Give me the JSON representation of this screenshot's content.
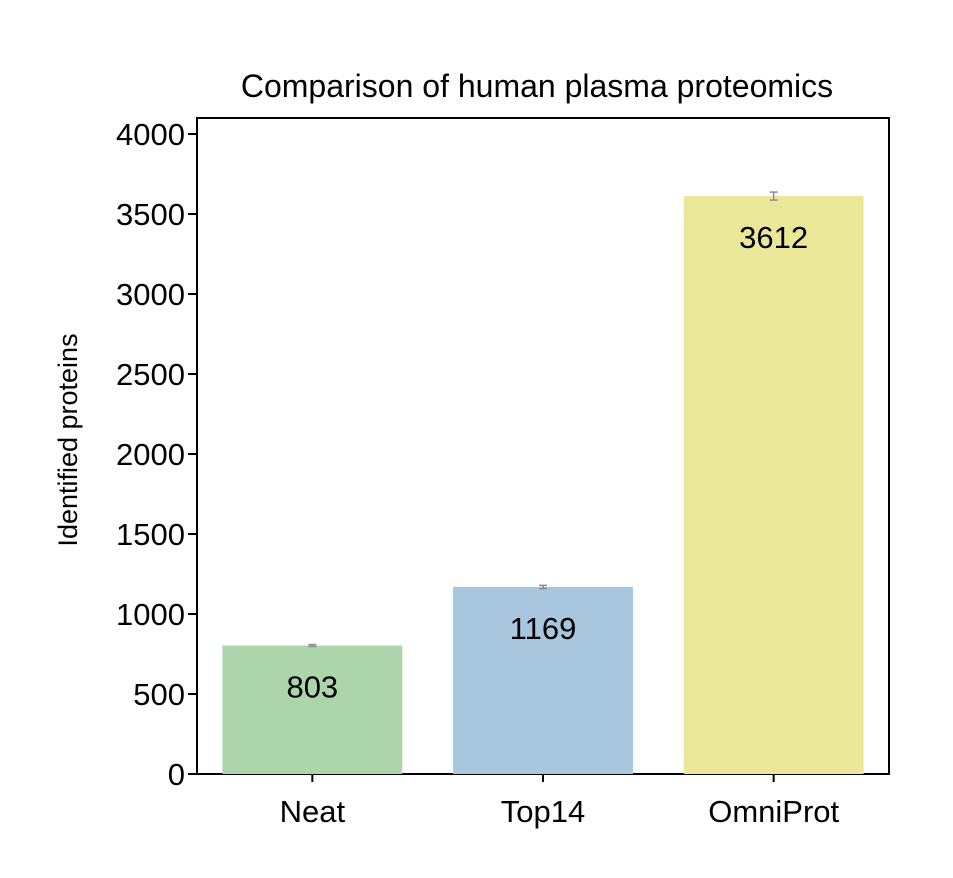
{
  "chart_data": {
    "type": "bar",
    "title": "Comparison of human plasma proteomics",
    "xlabel": "",
    "ylabel": "Identified proteins",
    "categories": [
      "Neat",
      "Top14",
      "OmniProt"
    ],
    "values": [
      803,
      1169,
      3612
    ],
    "error": [
      6,
      10,
      25
    ],
    "data_labels": [
      "803",
      "1169",
      "3612"
    ],
    "colors": [
      "#acd5ac",
      "#a8c6de",
      "#ebe799"
    ],
    "error_color": "#8c8c8c",
    "ylim": [
      0,
      4000
    ],
    "yticks": [
      0,
      500,
      1000,
      1500,
      2000,
      2500,
      3000,
      3500,
      4000
    ],
    "ytick_labels": [
      "0",
      "500",
      "1000",
      "1500",
      "2000",
      "2500",
      "3000",
      "3500",
      "4000"
    ],
    "grid": false,
    "legend": "none"
  }
}
